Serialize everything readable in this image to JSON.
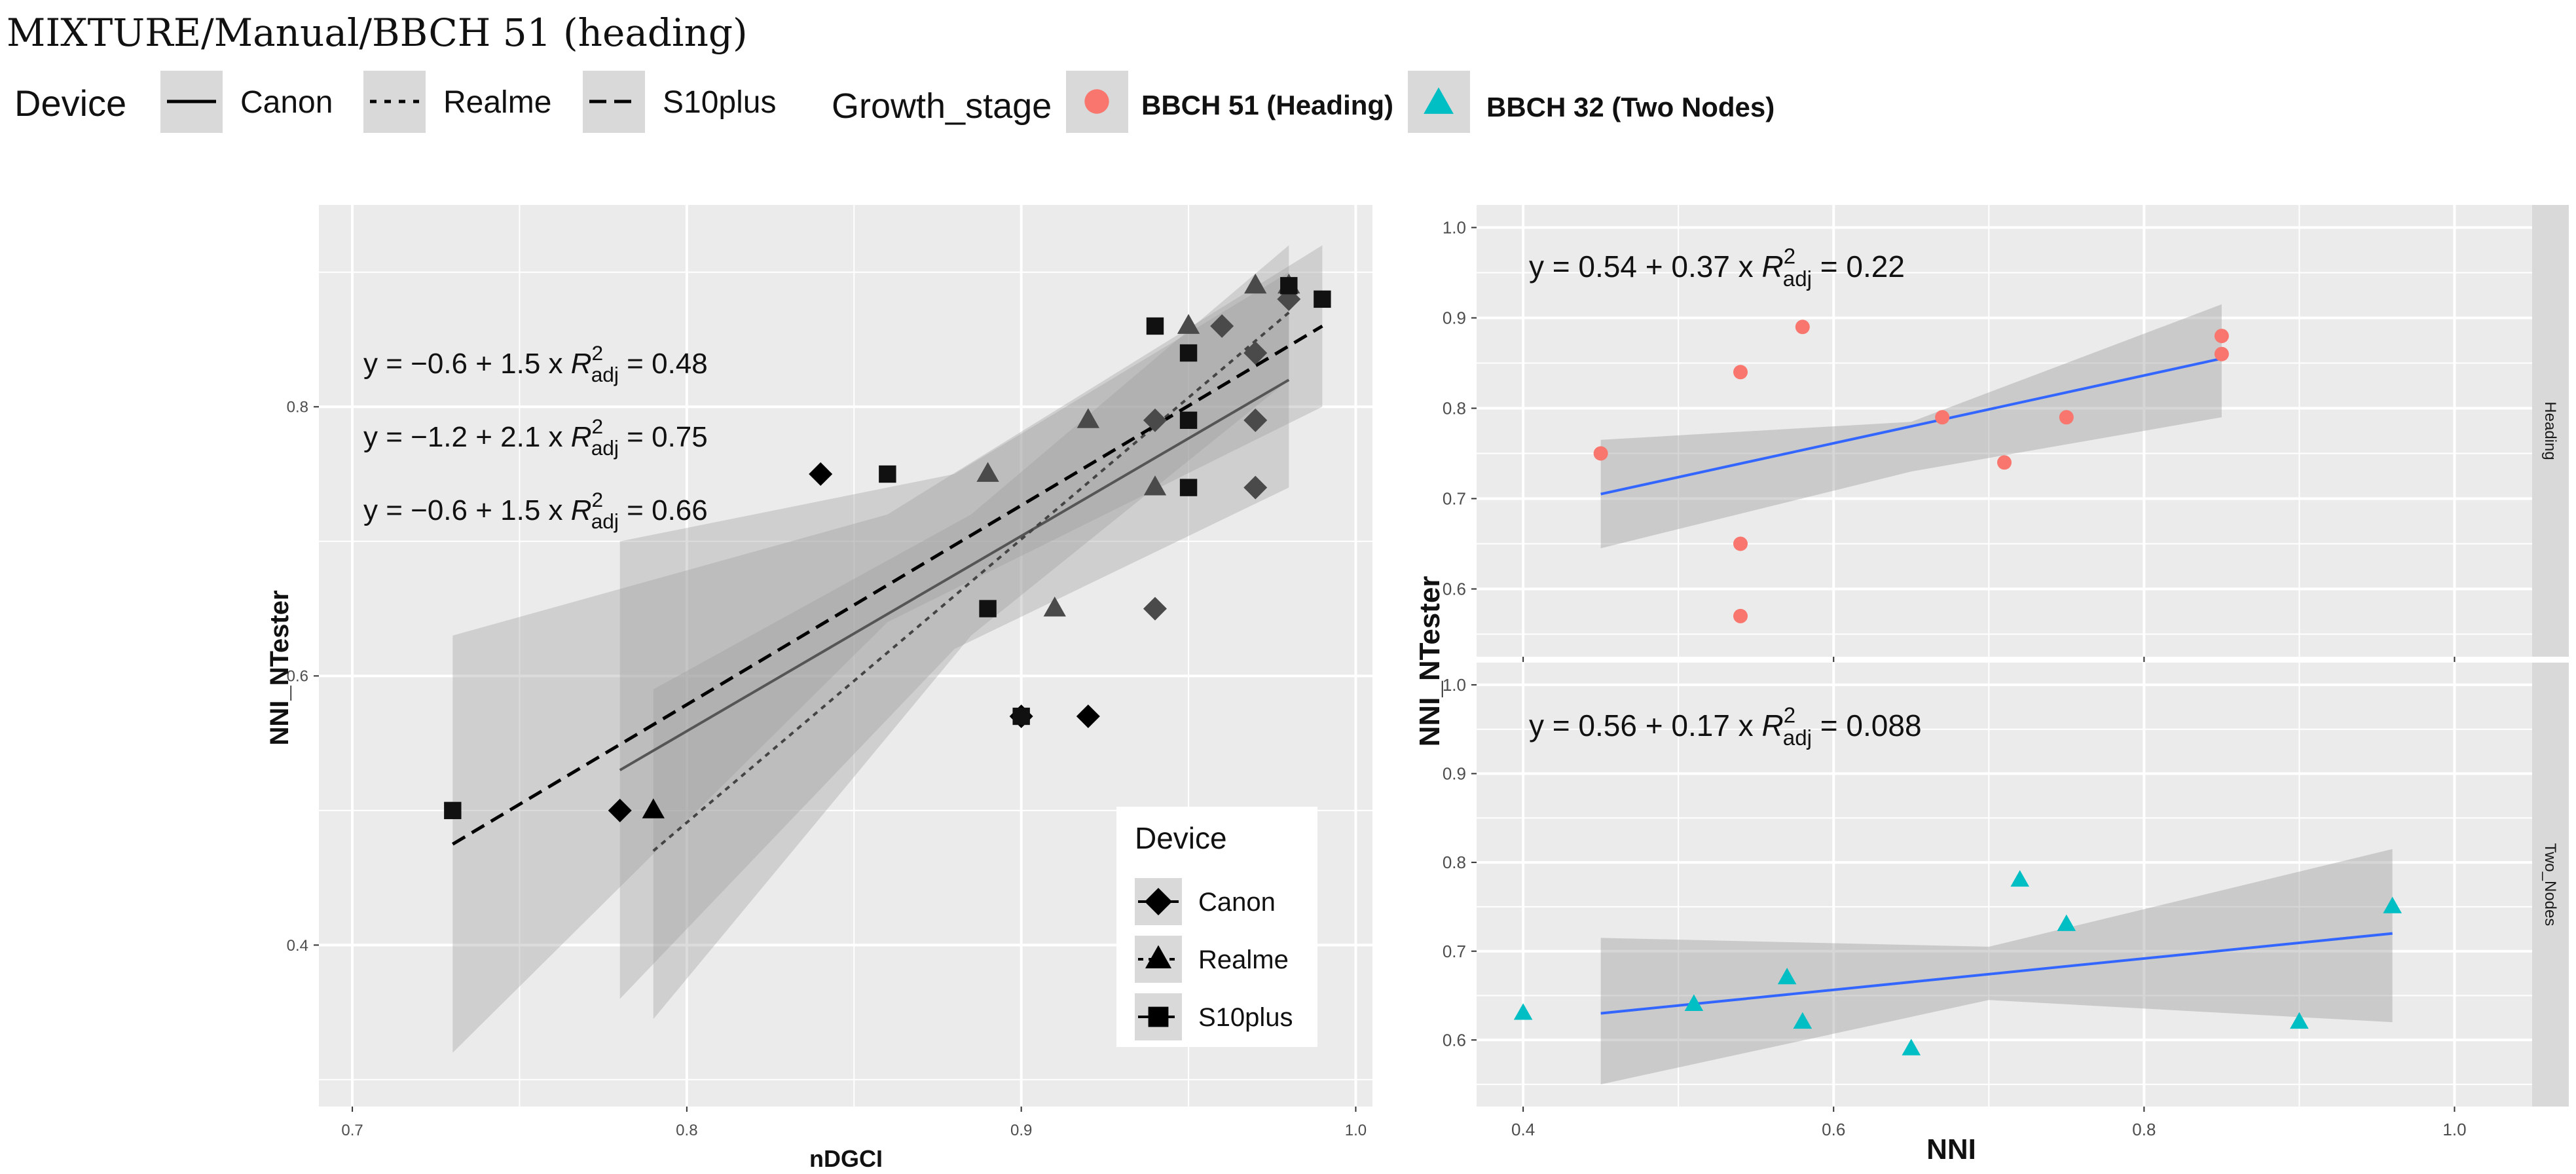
{
  "title": "MIXTURE/Manual/BBCH 51 (heading)",
  "legend_top": {
    "device_title": "Device",
    "devices": [
      "Canon",
      "Realme",
      "S10plus"
    ],
    "growth_title": "Growth_stage",
    "stages": [
      "BBCH 51 (Heading)",
      "BBCH 32 (Two Nodes)"
    ]
  },
  "colors": {
    "heading": "#F8766D",
    "two_nodes": "#00BFC4",
    "fit_blue": "#3366FF",
    "panel_bg": "#EBEBEB",
    "grid": "#FFFFFF",
    "strip_bg": "#D9D9D9"
  },
  "chart_data": [
    {
      "type": "scatter",
      "title": "",
      "xlabel": "nDGCI",
      "ylabel": "NNI_NTester",
      "xlim": [
        0.69,
        1.005
      ],
      "ylim": [
        0.28,
        0.95
      ],
      "xticks": [
        0.7,
        0.8,
        0.9,
        1.0
      ],
      "xtick_labels": [
        "0.7",
        "0.8",
        "0.9",
        "1.0"
      ],
      "yticks": [
        0.4,
        0.6,
        0.8
      ],
      "ytick_labels": [
        "0.4",
        "0.6",
        "0.8"
      ],
      "legend": {
        "title": "Device",
        "entries": [
          "Canon",
          "Realme",
          "S10plus"
        ],
        "position": "bottom-right"
      },
      "equations": [
        {
          "eq": "y = −0.6 + 1.5 x",
          "r2": "0.48"
        },
        {
          "eq": "y = −1.2 + 2.1 x",
          "r2": "0.75"
        },
        {
          "eq": "y = −0.6 + 1.5 x",
          "r2": "0.66"
        }
      ],
      "series": [
        {
          "name": "Canon",
          "marker": "diamond",
          "line": "solid",
          "points": [
            [
              0.78,
              0.5
            ],
            [
              0.84,
              0.75
            ],
            [
              0.9,
              0.57
            ],
            [
              0.92,
              0.57
            ],
            [
              0.94,
              0.65
            ],
            [
              0.94,
              0.79
            ],
            [
              0.96,
              0.86
            ],
            [
              0.97,
              0.84
            ],
            [
              0.97,
              0.79
            ],
            [
              0.97,
              0.74
            ],
            [
              0.98,
              0.88
            ]
          ],
          "fit": {
            "x": [
              0.78,
              0.98
            ],
            "y": [
              0.53,
              0.82
            ]
          },
          "band": {
            "x": [
              0.78,
              0.88,
              0.98
            ],
            "lo": [
              0.36,
              0.62,
              0.74
            ],
            "hi": [
              0.7,
              0.75,
              0.9
            ]
          }
        },
        {
          "name": "Realme",
          "marker": "triangle",
          "line": "dotted",
          "points": [
            [
              0.79,
              0.5
            ],
            [
              0.89,
              0.75
            ],
            [
              0.91,
              0.65
            ],
            [
              0.92,
              0.79
            ],
            [
              0.94,
              0.74
            ],
            [
              0.95,
              0.86
            ],
            [
              0.97,
              0.89
            ],
            [
              0.98,
              0.89
            ]
          ],
          "fit": {
            "x": [
              0.79,
              0.98
            ],
            "y": [
              0.47,
              0.87
            ]
          },
          "band": {
            "x": [
              0.79,
              0.885,
              0.98
            ],
            "lo": [
              0.345,
              0.63,
              0.82
            ],
            "hi": [
              0.59,
              0.72,
              0.92
            ]
          }
        },
        {
          "name": "S10plus",
          "marker": "square",
          "line": "dashed",
          "points": [
            [
              0.73,
              0.5
            ],
            [
              0.86,
              0.75
            ],
            [
              0.89,
              0.65
            ],
            [
              0.9,
              0.57
            ],
            [
              0.94,
              0.86
            ],
            [
              0.95,
              0.84
            ],
            [
              0.95,
              0.79
            ],
            [
              0.95,
              0.74
            ],
            [
              0.98,
              0.89
            ],
            [
              0.99,
              0.88
            ]
          ],
          "fit": {
            "x": [
              0.73,
              0.99
            ],
            "y": [
              0.475,
              0.86
            ]
          },
          "band": {
            "x": [
              0.73,
              0.86,
              0.99
            ],
            "lo": [
              0.32,
              0.64,
              0.8
            ],
            "hi": [
              0.63,
              0.72,
              0.92
            ]
          }
        }
      ]
    },
    {
      "type": "scatter",
      "title": "Heading",
      "xlabel": "NNI",
      "ylabel": "NNI_NTester",
      "xlim": [
        0.37,
        1.05
      ],
      "ylim": [
        0.525,
        1.025
      ],
      "xticks": [
        0.4,
        0.6,
        0.8,
        1.0
      ],
      "xtick_labels": [
        "0.4",
        "0.6",
        "0.8",
        "1.0"
      ],
      "yticks": [
        0.6,
        0.7,
        0.8,
        0.9,
        1.0
      ],
      "ytick_labels": [
        "0.6",
        "0.7",
        "0.8",
        "0.9",
        "1.0"
      ],
      "equation": {
        "eq": "y = 0.54 + 0.37 x",
        "r2": "0.22"
      },
      "series": [
        {
          "name": "BBCH 51 (Heading)",
          "marker": "circle",
          "points": [
            [
              0.45,
              0.75
            ],
            [
              0.54,
              0.84
            ],
            [
              0.54,
              0.65
            ],
            [
              0.54,
              0.57
            ],
            [
              0.58,
              0.89
            ],
            [
              0.67,
              0.79
            ],
            [
              0.71,
              0.74
            ],
            [
              0.75,
              0.79
            ],
            [
              0.85,
              0.88
            ],
            [
              0.85,
              0.86
            ]
          ],
          "fit": {
            "x": [
              0.45,
              0.85
            ],
            "y": [
              0.705,
              0.855
            ]
          },
          "band": {
            "x": [
              0.45,
              0.65,
              0.85
            ],
            "lo": [
              0.645,
              0.73,
              0.79
            ],
            "hi": [
              0.765,
              0.785,
              0.915
            ]
          }
        }
      ]
    },
    {
      "type": "scatter",
      "title": "Two_Nodes",
      "xlabel": "NNI",
      "ylabel": "NNI_NTester",
      "xlim": [
        0.37,
        1.05
      ],
      "ylim": [
        0.525,
        1.025
      ],
      "xticks": [
        0.4,
        0.6,
        0.8,
        1.0
      ],
      "xtick_labels": [
        "0.4",
        "0.6",
        "0.8",
        "1.0"
      ],
      "yticks": [
        0.6,
        0.7,
        0.8,
        0.9,
        1.0
      ],
      "ytick_labels": [
        "0.6",
        "0.7",
        "0.8",
        "0.9",
        "1.0"
      ],
      "equation": {
        "eq": "y = 0.56 + 0.17 x",
        "r2": "0.088"
      },
      "series": [
        {
          "name": "BBCH 32 (Two Nodes)",
          "marker": "triangle",
          "points": [
            [
              0.4,
              0.63
            ],
            [
              0.51,
              0.64
            ],
            [
              0.57,
              0.67
            ],
            [
              0.58,
              0.62
            ],
            [
              0.65,
              0.59
            ],
            [
              0.72,
              0.78
            ],
            [
              0.75,
              0.73
            ],
            [
              0.9,
              0.62
            ],
            [
              0.96,
              0.75
            ]
          ],
          "fit": {
            "x": [
              0.45,
              0.96
            ],
            "y": [
              0.63,
              0.72
            ]
          },
          "band": {
            "x": [
              0.45,
              0.7,
              0.96
            ],
            "lo": [
              0.55,
              0.645,
              0.62
            ],
            "hi": [
              0.715,
              0.705,
              0.815
            ]
          }
        }
      ]
    }
  ],
  "strip_labels": [
    "Heading",
    "Two_Nodes"
  ],
  "r2_symbol": "R",
  "r2_sup": "2",
  "r2_sub": "adj"
}
